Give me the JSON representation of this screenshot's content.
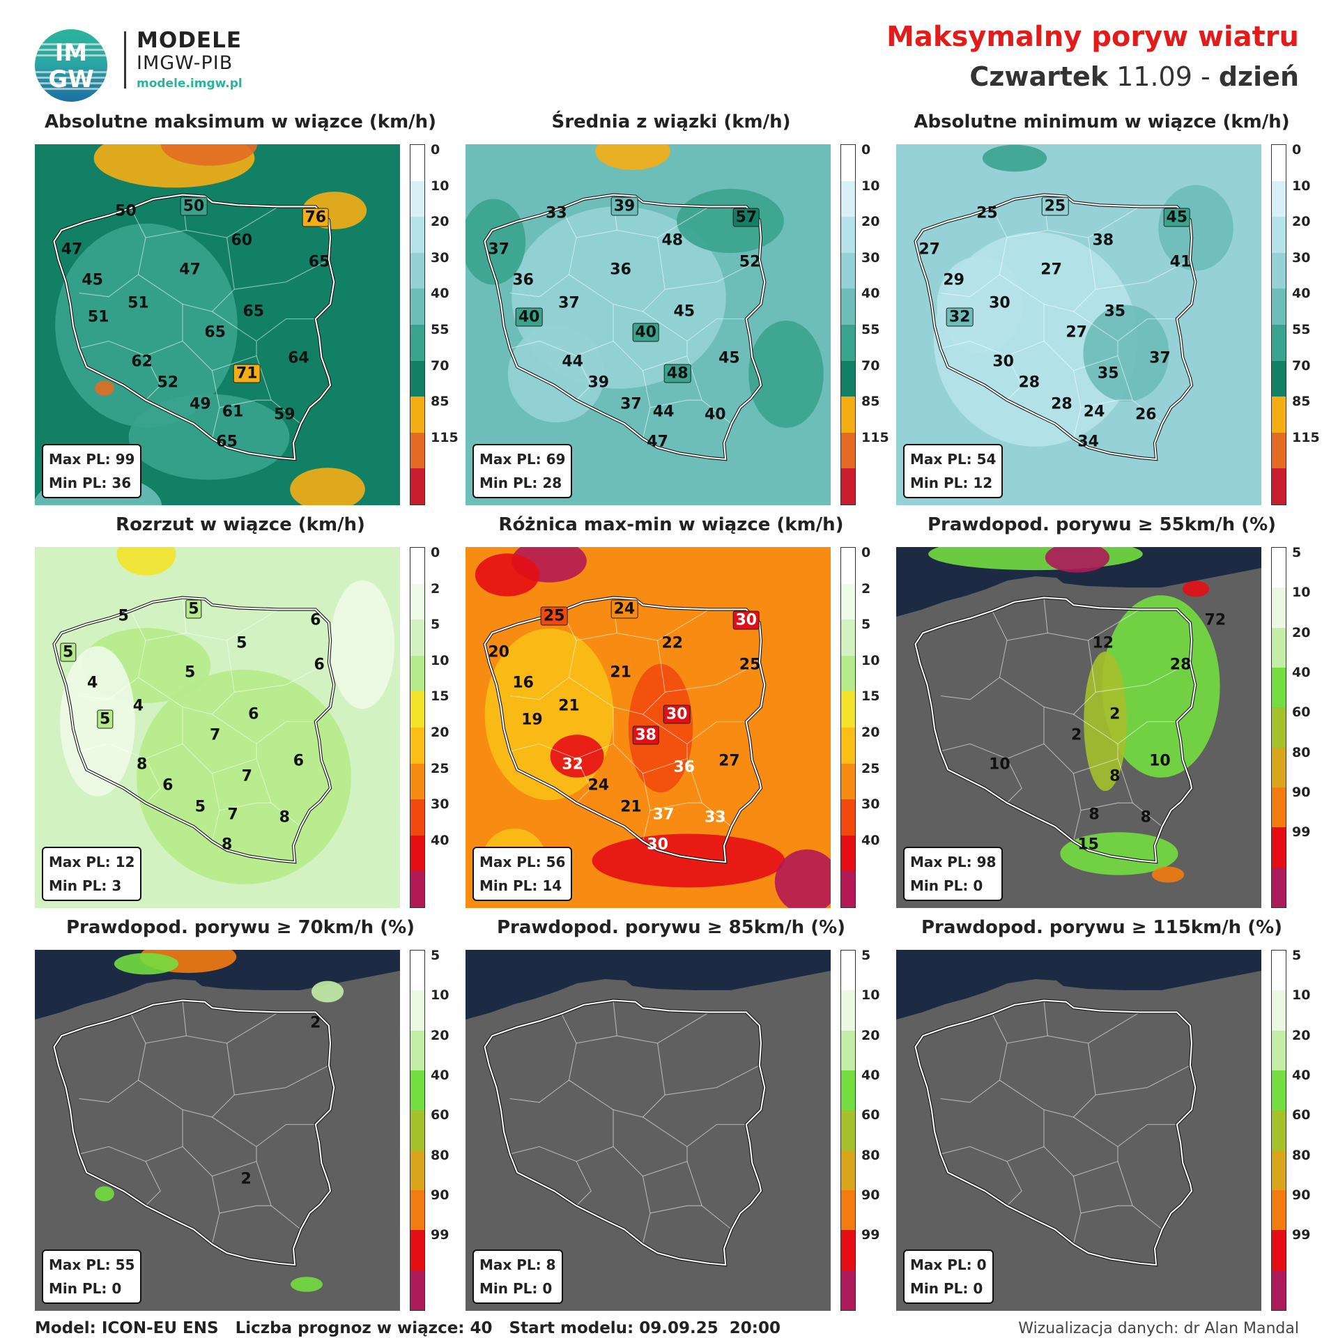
{
  "header": {
    "logo_top": "IM",
    "logo_bottom": "GW",
    "brand": "MODELE",
    "org": "IMGW-PIB",
    "url": "modele.imgw.pl",
    "title": "Maksymalny poryw wiatru",
    "day_name": "Czwartek",
    "date": "11.09",
    "sep": "-",
    "period": "dzień"
  },
  "scales": {
    "speed": {
      "ticks": [
        "0",
        "10",
        "20",
        "30",
        "40",
        "55",
        "70",
        "85",
        "115"
      ],
      "colors": [
        "#ffffff",
        "#d8f0f5",
        "#b5e3e9",
        "#95d1d6",
        "#6dbdb9",
        "#3aa38e",
        "#118065",
        "#f5ad14",
        "#e36b24",
        "#c91d2e"
      ]
    },
    "spread": {
      "ticks": [
        "0",
        "2",
        "5",
        "10",
        "15",
        "20",
        "25",
        "30",
        "40"
      ],
      "colors": [
        "#ffffff",
        "#eefbe8",
        "#d2f2c2",
        "#b5eb8a",
        "#f3e42a",
        "#f9bf17",
        "#f88c12",
        "#f24a0e",
        "#e60e15",
        "#b31a55"
      ]
    },
    "prob": {
      "ticks": [
        "5",
        "10",
        "20",
        "40",
        "60",
        "80",
        "90",
        "99"
      ],
      "colors": [
        "#ffffff",
        "#ebf9e2",
        "#c4eea8",
        "#74dd40",
        "#a6c02c",
        "#d9a51b",
        "#f37b10",
        "#e60e15",
        "#ad1a5a"
      ]
    }
  },
  "panels": [
    {
      "title": "Absolutne maksimum w wiązce (km/h)",
      "max": "Max PL: 99",
      "min": "Min PL: 36",
      "values": [
        {
          "v": "50"
        },
        {
          "v": "50",
          "box": true
        },
        {
          "v": "76",
          "box": true
        },
        {
          "v": "47"
        },
        {
          "v": "60"
        },
        {
          "v": "45"
        },
        {
          "v": "47"
        },
        {
          "v": "65"
        },
        {
          "v": "51"
        },
        {
          "v": "51"
        },
        {
          "v": "65"
        },
        {
          "v": "65"
        },
        {
          "v": "62"
        },
        {
          "v": "64"
        },
        {
          "v": "52"
        },
        {
          "v": "71",
          "box": true
        },
        {
          "v": "49"
        },
        {
          "v": "61"
        },
        {
          "v": "59"
        },
        {
          "v": "65"
        }
      ]
    },
    {
      "title": "Średnia z wiązki (km/h)",
      "max": "Max PL: 69",
      "min": "Min PL: 28",
      "values": [
        {
          "v": "33"
        },
        {
          "v": "39",
          "box": true
        },
        {
          "v": "57",
          "box": true
        },
        {
          "v": "37"
        },
        {
          "v": "48"
        },
        {
          "v": "36"
        },
        {
          "v": "36"
        },
        {
          "v": "52"
        },
        {
          "v": "37"
        },
        {
          "v": "40",
          "box": true
        },
        {
          "v": "45"
        },
        {
          "v": "40",
          "box": true
        },
        {
          "v": "44"
        },
        {
          "v": "45"
        },
        {
          "v": "39"
        },
        {
          "v": "48",
          "box": true
        },
        {
          "v": "37"
        },
        {
          "v": "44"
        },
        {
          "v": "40"
        },
        {
          "v": "47"
        }
      ]
    },
    {
      "title": "Absolutne minimum w wiązce (km/h)",
      "max": "Max PL: 54",
      "min": "Min PL: 12",
      "values": [
        {
          "v": "25"
        },
        {
          "v": "25",
          "box": true
        },
        {
          "v": "45",
          "box": true
        },
        {
          "v": "27"
        },
        {
          "v": "38"
        },
        {
          "v": "29"
        },
        {
          "v": "27"
        },
        {
          "v": "41"
        },
        {
          "v": "30"
        },
        {
          "v": "32",
          "box": true
        },
        {
          "v": "35"
        },
        {
          "v": "27"
        },
        {
          "v": "30"
        },
        {
          "v": "37"
        },
        {
          "v": "28"
        },
        {
          "v": "35"
        },
        {
          "v": "28"
        },
        {
          "v": "24"
        },
        {
          "v": "26"
        },
        {
          "v": "34"
        }
      ]
    },
    {
      "title": "Rozrzut w wiązce (km/h)",
      "max": "Max PL: 12",
      "min": "Min PL: 3",
      "values": [
        {
          "v": "5"
        },
        {
          "v": "5",
          "box": true
        },
        {
          "v": "6"
        },
        {
          "v": "5",
          "box": true
        },
        {
          "v": "5"
        },
        {
          "v": "4"
        },
        {
          "v": "5"
        },
        {
          "v": "6"
        },
        {
          "v": "5",
          "box": true
        },
        {
          "v": "4"
        },
        {
          "v": "6"
        },
        {
          "v": "7"
        },
        {
          "v": "8"
        },
        {
          "v": "6"
        },
        {
          "v": "6"
        },
        {
          "v": "7"
        },
        {
          "v": "5"
        },
        {
          "v": "7"
        },
        {
          "v": "8"
        },
        {
          "v": "8"
        }
      ]
    },
    {
      "title": "Różnica max-min w wiązce (km/h)",
      "max": "Max PL: 56",
      "min": "Min PL: 14",
      "values": [
        {
          "v": "25",
          "box": true
        },
        {
          "v": "24",
          "box": true
        },
        {
          "v": "30",
          "box": true,
          "white": true
        },
        {
          "v": "20"
        },
        {
          "v": "22"
        },
        {
          "v": "21"
        },
        {
          "v": "25"
        },
        {
          "v": "16"
        },
        {
          "v": "21"
        },
        {
          "v": "30",
          "box": true,
          "white": true
        },
        {
          "v": "19"
        },
        {
          "v": "38",
          "box": true,
          "white": true
        },
        {
          "v": "27"
        },
        {
          "v": "32",
          "white": true
        },
        {
          "v": "36",
          "white": true
        },
        {
          "v": "24"
        },
        {
          "v": "21"
        },
        {
          "v": "37",
          "white": true
        },
        {
          "v": "33",
          "white": true
        },
        {
          "v": "30",
          "white": true
        }
      ]
    },
    {
      "title": "Prawdopod. porywu ≥ 55km/h (%)",
      "max": "Max PL: 98",
      "min": "Min PL: 0",
      "values": [
        {
          "v": "72"
        },
        {
          "v": "12"
        },
        {
          "v": "28"
        },
        {
          "v": "2"
        },
        {
          "v": "2"
        },
        {
          "v": "10"
        },
        {
          "v": "10"
        },
        {
          "v": "8"
        },
        {
          "v": "8"
        },
        {
          "v": "8"
        },
        {
          "v": "15"
        }
      ]
    },
    {
      "title": "Prawdopod. porywu ≥ 70km/h (%)",
      "max": "Max PL: 55",
      "min": "Min PL: 0",
      "values": [
        {
          "v": "2"
        },
        {
          "v": "2"
        }
      ]
    },
    {
      "title": "Prawdopod. porywu ≥ 85km/h (%)",
      "max": "Max PL: 8",
      "min": "Min PL: 0",
      "values": []
    },
    {
      "title": "Prawdopod. porywu ≥ 115km/h (%)",
      "max": "Max PL: 0",
      "min": "Min PL: 0",
      "values": []
    }
  ],
  "footer": {
    "model": "Model: ICON-EU ENS",
    "ensemble": "Liczba prognoz w wiązce: 40",
    "start": "Start modelu: 09.09.25  20:00",
    "credit": "Wizualizacja danych: dr Alan Mandal"
  }
}
